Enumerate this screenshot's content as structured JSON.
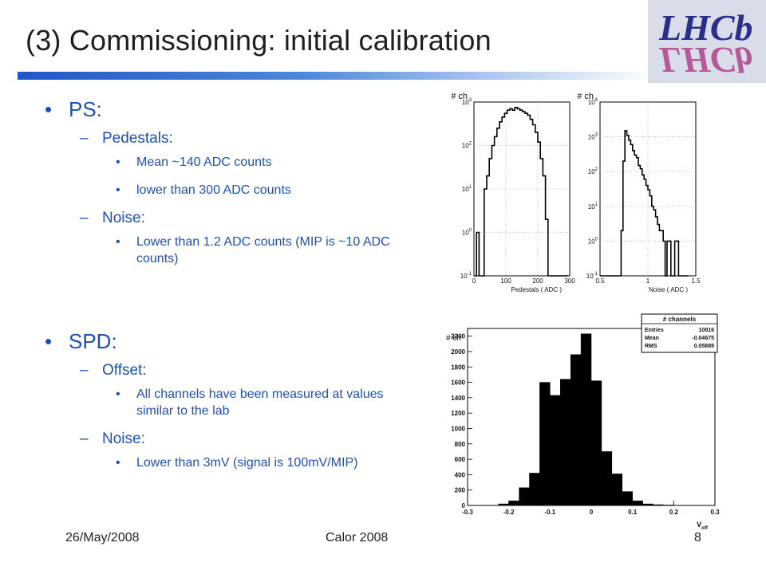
{
  "title": "(3) Commissioning: initial calibration",
  "logo_text": "LHCb",
  "sections": [
    {
      "label": "PS:",
      "subs": [
        {
          "label": "Pedestals:",
          "items": [
            "Mean ~140 ADC counts",
            "lower than 300 ADC counts"
          ]
        },
        {
          "label": "Noise:",
          "items": [
            "Lower than 1.2 ADC counts (MIP is ~10 ADC counts)"
          ]
        }
      ]
    },
    {
      "label": "SPD:",
      "subs": [
        {
          "label": "Offset:",
          "items": [
            "All channels have been measured at values similar to the lab"
          ]
        },
        {
          "label": "Noise:",
          "items": [
            "Lower than 3mV (signal is 100mV/MIP)"
          ]
        }
      ]
    }
  ],
  "footer": {
    "date": "26/May/2008",
    "conference": "Calor 2008",
    "page": "8"
  },
  "chart_data": [
    {
      "type": "bar",
      "ylabel": "# ch",
      "xlabel": "Pedestals ( ADC )",
      "xlim": [
        0,
        300
      ],
      "ylim": [
        0.1,
        1000
      ],
      "yscale": "log",
      "xticks": [
        "0",
        "100",
        "200",
        "300"
      ],
      "yticks": [
        "10^-1",
        "10^0",
        "10^1",
        "10^2",
        "10^3"
      ],
      "grid": true,
      "bins_x": [
        0,
        8,
        16,
        24,
        32,
        40,
        48,
        56,
        64,
        72,
        80,
        88,
        96,
        104,
        112,
        120,
        128,
        136,
        144,
        152,
        160,
        168,
        176,
        184,
        192,
        200,
        208,
        216,
        224,
        232,
        240,
        248,
        256,
        264,
        272,
        280,
        288
      ],
      "values": [
        0.1,
        1,
        0.1,
        0.1,
        10,
        20,
        50,
        100,
        160,
        250,
        350,
        450,
        550,
        650,
        700,
        650,
        750,
        700,
        650,
        600,
        550,
        500,
        400,
        300,
        200,
        120,
        50,
        20,
        2,
        0.1,
        0.1,
        0.1,
        0.1,
        0.1,
        0.1,
        0.1,
        0.1
      ]
    },
    {
      "type": "bar",
      "ylabel": "# ch",
      "xlabel": "Noise ( ADC )",
      "xlim": [
        0.5,
        1.5
      ],
      "ylim": [
        0.1,
        10000
      ],
      "yscale": "log",
      "xticks": [
        "0.5",
        "1",
        "1.5"
      ],
      "yticks": [
        "10^-1",
        "10^0",
        "10^1",
        "10^2",
        "10^3",
        "10^4"
      ],
      "grid": true,
      "bins_x": [
        0.5,
        0.52,
        0.54,
        0.56,
        0.58,
        0.6,
        0.62,
        0.64,
        0.66,
        0.68,
        0.7,
        0.72,
        0.74,
        0.76,
        0.78,
        0.8,
        0.82,
        0.84,
        0.86,
        0.88,
        0.9,
        0.92,
        0.94,
        0.96,
        0.98,
        1.0,
        1.02,
        1.04,
        1.06,
        1.08,
        1.1,
        1.12,
        1.14,
        1.16,
        1.18,
        1.2,
        1.22,
        1.24,
        1.26,
        1.28,
        1.3,
        1.32,
        1.34,
        1.36,
        1.38,
        1.4
      ],
      "values": [
        0.1,
        0.1,
        0.1,
        0.1,
        0.1,
        0.1,
        0.1,
        0.1,
        0.1,
        0.1,
        0.1,
        2,
        200,
        1500,
        1100,
        800,
        600,
        400,
        300,
        250,
        150,
        120,
        80,
        60,
        40,
        30,
        20,
        10,
        8,
        5,
        3,
        2,
        2,
        1,
        0.1,
        1,
        1,
        0.1,
        0.1,
        1,
        1,
        0.1,
        0.1,
        0.1,
        0.1,
        0.1
      ]
    },
    {
      "type": "bar",
      "ylabel": "# ch",
      "xlabel": "V_off",
      "xlim": [
        -0.3,
        0.3
      ],
      "ylim": [
        0,
        2300
      ],
      "xticks": [
        "-0.3",
        "-0.2",
        "-0.1",
        "0",
        "0.1",
        "0.2",
        "0.3"
      ],
      "yticks": [
        "0",
        "200",
        "400",
        "600",
        "800",
        "1000",
        "1200",
        "1400",
        "1600",
        "1800",
        "2000",
        "2200"
      ],
      "grid": false,
      "bins_x": [
        -0.3,
        -0.275,
        -0.25,
        -0.225,
        -0.2,
        -0.175,
        -0.15,
        -0.125,
        -0.1,
        -0.075,
        -0.05,
        -0.025,
        0,
        0.025,
        0.05,
        0.075,
        0.1,
        0.125,
        0.15,
        0.175,
        0.2,
        0.225,
        0.25,
        0.275
      ],
      "values": [
        0,
        0,
        0,
        20,
        60,
        230,
        420,
        1600,
        1430,
        1640,
        1960,
        2230,
        1620,
        700,
        410,
        180,
        60,
        20,
        10,
        5,
        2,
        0,
        0,
        0
      ],
      "stats": {
        "title": "# channels",
        "rows": [
          {
            "label": "Entries",
            "value": "10816"
          },
          {
            "label": "Mean",
            "value": "-0.04675"
          },
          {
            "label": "RMS",
            "value": "0.05889"
          }
        ]
      }
    }
  ]
}
